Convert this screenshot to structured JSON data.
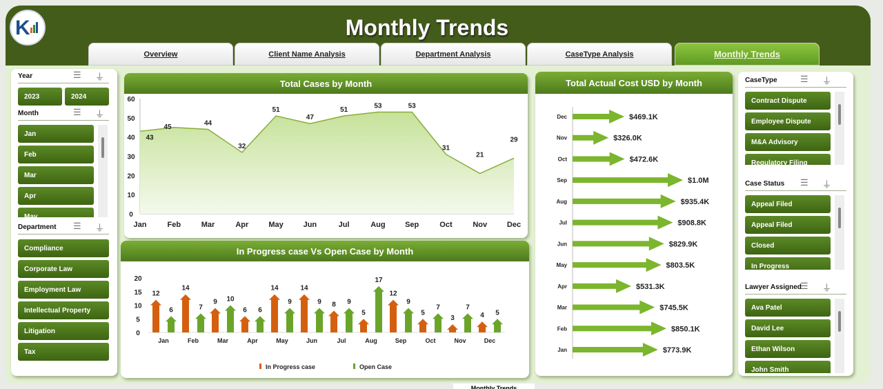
{
  "header": {
    "title": "Monthly Trends",
    "logo_text": "K"
  },
  "tabs": [
    {
      "label": "Overview",
      "active": false
    },
    {
      "label": "Client Name Analysis",
      "active": false
    },
    {
      "label": "Department Analysis",
      "active": false
    },
    {
      "label": "CaseType Analysis",
      "active": false
    },
    {
      "label": "Monthly Trends",
      "active": true
    }
  ],
  "slicers": {
    "year": {
      "title": "Year",
      "items": [
        "2023",
        "2024"
      ]
    },
    "month": {
      "title": "Month",
      "items": [
        "Jan",
        "Feb",
        "Mar",
        "Apr",
        "May"
      ]
    },
    "department": {
      "title": "Department",
      "items": [
        "Compliance",
        "Corporate Law",
        "Employment Law",
        "Intellectual Property",
        "Litigation",
        "Tax"
      ]
    },
    "casetype": {
      "title": "CaseType",
      "items": [
        "Contract Dispute",
        "Employee Dispute",
        "M&A Advisory",
        "Regulatory Filing"
      ]
    },
    "case_status": {
      "title": "Case Status",
      "items": [
        "Appeal Filed",
        "Appeal Filed",
        "Closed",
        "In Progress"
      ]
    },
    "lawyer": {
      "title": "Lawyer Assigned",
      "items": [
        "Ava Patel",
        "David Lee",
        "Ethan Wilson",
        "John Smith"
      ]
    }
  },
  "colors": {
    "brand": "#445c1a",
    "accent": "#7aad35",
    "in_progress": "#d4600f",
    "open": "#6aa52a"
  },
  "sheet_tab": "Monthly Trends",
  "chart_data": [
    {
      "type": "area",
      "title": "Total Cases by Month",
      "categories": [
        "Jan",
        "Feb",
        "Mar",
        "Apr",
        "May",
        "Jun",
        "Jul",
        "Aug",
        "Sep",
        "Oct",
        "Nov",
        "Dec"
      ],
      "values": [
        43,
        45,
        44,
        32,
        51,
        47,
        51,
        53,
        53,
        31,
        21,
        29
      ],
      "ylim": [
        0,
        60
      ],
      "yticks": [
        0,
        10,
        20,
        30,
        40,
        50,
        60
      ],
      "grid": false
    },
    {
      "type": "bar",
      "title": "In Progress case Vs Open Case by Month",
      "categories": [
        "Jan",
        "Feb",
        "Mar",
        "Apr",
        "May",
        "Jun",
        "Jul",
        "Aug",
        "Sep",
        "Oct",
        "Nov",
        "Dec"
      ],
      "series": [
        {
          "name": "In Progress case",
          "values": [
            12,
            14,
            9,
            6,
            14,
            14,
            8,
            5,
            12,
            5,
            3,
            4
          ]
        },
        {
          "name": "Open Case",
          "values": [
            6,
            7,
            10,
            6,
            9,
            9,
            9,
            17,
            9,
            7,
            7,
            5
          ]
        }
      ],
      "ylim": [
        0,
        20
      ],
      "yticks": [
        0,
        5,
        10,
        15,
        20
      ],
      "legend": "bottom",
      "grid": false
    },
    {
      "type": "bar",
      "orientation": "horizontal",
      "title": "Total Actual Cost USD by Month",
      "categories": [
        "Dec",
        "Nov",
        "Oct",
        "Sep",
        "Aug",
        "Jul",
        "Jun",
        "May",
        "Apr",
        "Mar",
        "Feb",
        "Jan"
      ],
      "values": [
        469.1,
        326.0,
        472.6,
        1000,
        935.4,
        908.8,
        829.9,
        803.5,
        531.3,
        745.5,
        850.1,
        773.9
      ],
      "labels": [
        "$469.1K",
        "$326.0K",
        "$472.6K",
        "$1.0M",
        "$935.4K",
        "$908.8K",
        "$829.9K",
        "$803.5K",
        "$531.3K",
        "$745.5K",
        "$850.1K",
        "$773.9K"
      ],
      "unit": "USD thousands"
    }
  ]
}
